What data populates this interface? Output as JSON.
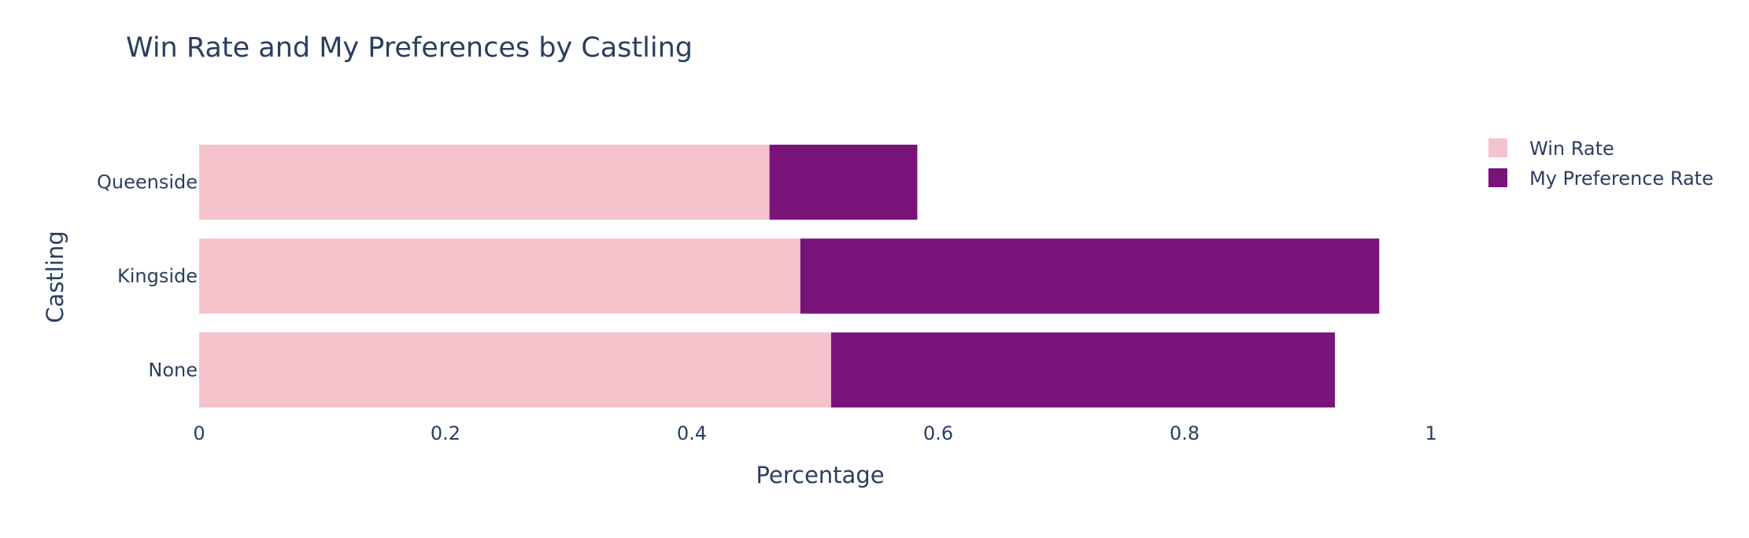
{
  "chart_data": {
    "type": "bar",
    "orientation": "horizontal",
    "barmode": "stack",
    "title": "Win Rate and My Preferences by Castling",
    "xlabel": "Percentage",
    "ylabel": "Castling",
    "categories": [
      "None",
      "Kingside",
      "Queenside"
    ],
    "xlim": [
      0,
      1
    ],
    "x_ticks": [
      0,
      0.2,
      0.4,
      0.6,
      0.8,
      1
    ],
    "x_tick_labels": [
      "0",
      "0.2",
      "0.4",
      "0.6",
      "0.8",
      "1"
    ],
    "grid": false,
    "legend_position": "top-right",
    "series": [
      {
        "name": "Win Rate",
        "color": "#f4c2cb",
        "values": [
          0.513,
          0.488,
          0.463
        ]
      },
      {
        "name": "My Preference Rate",
        "color": "#771379",
        "values": [
          0.409,
          0.47,
          0.12
        ]
      }
    ]
  }
}
